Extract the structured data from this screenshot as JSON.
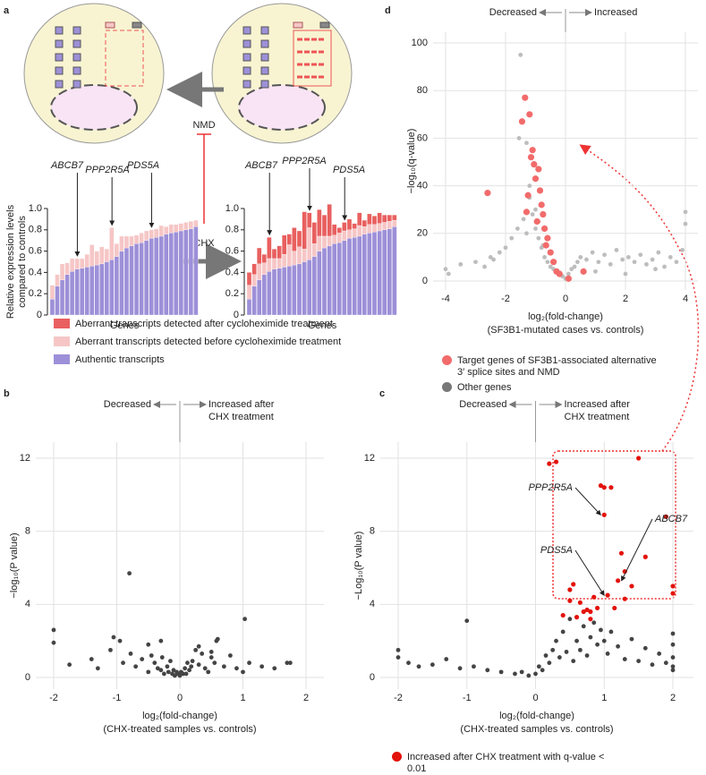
{
  "diagram": {
    "labels": [
      "NMD",
      "CHX"
    ]
  },
  "chart_data": [
    {
      "type": "bar",
      "panel": "a",
      "ylabel": [
        "Relative expression levels",
        "compared to controls"
      ],
      "xlabel": "Genes",
      "annotations": [
        "ABCB7",
        "PPP2R5A",
        "PDS5A"
      ],
      "categories": [
        null,
        null,
        null,
        null,
        null,
        null,
        null,
        null,
        null,
        null,
        null,
        null,
        null,
        null,
        null,
        null,
        null,
        null,
        null,
        null,
        null,
        null,
        null,
        null,
        null,
        null,
        null,
        null,
        null,
        null
      ],
      "ylim": [
        0,
        1
      ],
      "yticks": [
        0,
        0.2,
        0.4,
        0.6,
        0.8,
        {
          "value": 1,
          "label": "1.0"
        }
      ],
      "series": [
        {
          "color": "#9d90d8",
          "values": [
            0.15,
            0.27,
            0.33,
            0.38,
            0.41,
            0.43,
            0.44,
            0.45,
            0.46,
            0.47,
            0.48,
            0.5,
            0.52,
            0.55,
            0.6,
            0.63,
            0.65,
            0.67,
            0.68,
            0.7,
            0.72,
            0.73,
            0.74,
            0.76,
            0.77,
            0.78,
            0.79,
            0.8,
            0.81,
            0.83
          ]
        },
        {
          "color": "#f6c6c6",
          "values": [
            0.13,
            0.11,
            0.15,
            0.11,
            0.12,
            0.1,
            0.09,
            0.12,
            0.2,
            0.13,
            0.16,
            0.12,
            0.3,
            0.12,
            0.14,
            0.11,
            0.09,
            0.08,
            0.09,
            0.09,
            0.08,
            0.08,
            0.1,
            0.07,
            0.08,
            0.07,
            0.07,
            0.07,
            0.07,
            0.06
          ]
        }
      ]
    },
    {
      "type": "bar",
      "xlabel": "Genes",
      "annotations": [
        "ABCB7",
        "PPP2R5A",
        "PDS5A"
      ],
      "categories": [
        null,
        null,
        null,
        null,
        null,
        null,
        null,
        null,
        null,
        null,
        null,
        null,
        null,
        null,
        null,
        null,
        null,
        null,
        null,
        null,
        null,
        null,
        null,
        null,
        null,
        null,
        null,
        null,
        null,
        null
      ],
      "ylim": [
        0,
        1
      ],
      "yticks": [
        0,
        0.2,
        0.4,
        0.6,
        0.8,
        {
          "value": 1,
          "label": "1.0"
        }
      ],
      "series": [
        {
          "name": "Authentic transcripts",
          "color": "#9d90d8",
          "values": [
            0.15,
            0.27,
            0.33,
            0.38,
            0.41,
            0.43,
            0.44,
            0.45,
            0.46,
            0.47,
            0.48,
            0.5,
            0.52,
            0.55,
            0.6,
            0.63,
            0.65,
            0.67,
            0.68,
            0.7,
            0.72,
            0.73,
            0.74,
            0.76,
            0.77,
            0.78,
            0.79,
            0.8,
            0.81,
            0.83
          ]
        },
        {
          "name": "Aberrant transcripts detected before cycloheximide treatment",
          "color": "#f6c6c6",
          "values": [
            0.13,
            0.11,
            0.15,
            0.11,
            0.12,
            0.1,
            0.09,
            0.12,
            0.2,
            0.13,
            0.16,
            0.12,
            0.3,
            0.12,
            0.14,
            0.11,
            0.09,
            0.08,
            0.09,
            0.09,
            0.08,
            0.08,
            0.1,
            0.07,
            0.08,
            0.07,
            0.07,
            0.07,
            0.07,
            0.06
          ]
        },
        {
          "name": "Aberrant transcripts detected after cycloheximide treatment",
          "color": "#e8605f",
          "values": [
            0.12,
            0.1,
            0.15,
            0.08,
            0.2,
            0.09,
            0.12,
            0.18,
            0.1,
            0.22,
            0.15,
            0.35,
            0.14,
            0.2,
            0.25,
            0.2,
            0.3,
            0.1,
            0.05,
            0.08,
            0.1,
            0.05,
            0.12,
            0.06,
            0.1,
            0.08,
            0.1,
            0.07,
            0.06,
            0.05
          ]
        }
      ]
    },
    {
      "type": "scatter",
      "panel": "b",
      "left_label": "Decreased",
      "right_label": [
        "Increased after",
        "CHX treatment"
      ],
      "xlabel": [
        "log₂(fold-change)",
        "(CHX-treated samples vs. controls)"
      ],
      "ylabel": "−log₁₀(P value)",
      "xlim": [
        -2,
        2
      ],
      "xticks": [
        -2,
        -1,
        0,
        1,
        2
      ],
      "ylim": [
        0,
        12
      ],
      "yticks": [
        0,
        4,
        8,
        12
      ],
      "grid": true,
      "series": [
        {
          "color": "#444444",
          "x": [
            -2,
            -2,
            -1.75,
            -1.4,
            -1.3,
            -1.1,
            -1.05,
            -0.95,
            -0.9,
            -0.8,
            -0.7,
            -0.6,
            -0.5,
            -0.45,
            -0.4,
            -0.35,
            -0.3,
            -0.28,
            -0.25,
            -0.2,
            -0.18,
            -0.15,
            -0.12,
            -0.1,
            -0.08,
            -0.05,
            -0.03,
            0,
            0.02,
            0.05,
            0.08,
            0.1,
            0.12,
            0.15,
            0.18,
            0.2,
            0.25,
            0.3,
            0.35,
            0.4,
            0.45,
            0.5,
            0.55,
            0.6,
            0.7,
            0.8,
            0.9,
            1.0,
            1.03,
            1.1,
            1.3,
            1.5,
            1.7,
            1.75,
            -0.78,
            -0.5,
            -0.3,
            0.3,
            0.5,
            0.58
          ],
          "values": [
            2.6,
            1.9,
            0.7,
            1.0,
            0.5,
            1.5,
            2.2,
            2.0,
            0.8,
            5.7,
            0.6,
            1.0,
            0.3,
            1.2,
            0.8,
            0.5,
            0.4,
            1.1,
            0.2,
            0.6,
            0.3,
            0.9,
            0.2,
            0.4,
            0.1,
            0.3,
            0.2,
            0.1,
            0.3,
            0.2,
            0.5,
            0.2,
            0.8,
            0.4,
            0.6,
            0.9,
            1.5,
            0.7,
            1.3,
            0.5,
            0.3,
            1.4,
            0.8,
            2.1,
            0.6,
            1.2,
            0.5,
            0.3,
            3.2,
            0.8,
            0.6,
            0.5,
            0.8,
            0.8,
            1.3,
            1.8,
            2.0,
            1.7,
            1.1,
            2.0
          ]
        }
      ]
    },
    {
      "type": "scatter",
      "panel": "c",
      "left_label": "Decreased",
      "right_label": [
        "Increased after",
        "CHX treatment"
      ],
      "xlabel": [
        "log₂(fold-change)",
        "(CHX-treated samples vs. controls)"
      ],
      "ylabel": "−Log₁₀(P value)",
      "annotations": [
        "PPP2R5A",
        "PDS5A",
        "ABCB7"
      ],
      "xlim": [
        -2,
        2
      ],
      "xticks": [
        -2,
        -1,
        0,
        1,
        2
      ],
      "ylim": [
        0,
        12
      ],
      "yticks": [
        0,
        4,
        8,
        12
      ],
      "grid": true,
      "series": [
        {
          "color": "#444444",
          "x": [
            -2,
            -2,
            -1.85,
            -1.7,
            -1.5,
            -1.3,
            -1.1,
            -1.0,
            -0.9,
            -0.7,
            -0.5,
            -0.3,
            -0.2,
            -0.1,
            0,
            0.05,
            0.1,
            0.15,
            0.2,
            0.25,
            0.3,
            0.35,
            0.4,
            0.45,
            0.5,
            0.55,
            0.6,
            0.65,
            0.7,
            0.75,
            0.8,
            0.85,
            0.9,
            0.95,
            1.0,
            1.05,
            1.1,
            1.2,
            1.3,
            1.4,
            1.5,
            1.6,
            1.7,
            1.8,
            1.9,
            2,
            2,
            2,
            2,
            2
          ],
          "values": [
            1.5,
            1.1,
            0.8,
            0.6,
            0.7,
            1.0,
            0.5,
            3.1,
            0.6,
            0.4,
            0.3,
            0.2,
            0.3,
            0.1,
            0.2,
            0.6,
            0.4,
            1.2,
            0.8,
            1.5,
            2.0,
            1.1,
            2.5,
            1.4,
            3.2,
            0.9,
            2.0,
            1.5,
            2.8,
            1.2,
            2.2,
            3.0,
            1.8,
            2.6,
            2.0,
            1.3,
            2.5,
            1.7,
            1.0,
            2.1,
            0.9,
            1.6,
            0.7,
            1.3,
            0.8,
            2.4,
            1.8,
            1.1,
            0.6,
            0.4
          ]
        },
        {
          "name": "Increased after CHX treatment with q-value < 0.01",
          "color": "#e3120b",
          "x": [
            0.2,
            0.3,
            0.5,
            0.6,
            0.7,
            0.9,
            0.95,
            1.0,
            1.05,
            1.1,
            0.4,
            0.5,
            0.55,
            0.65,
            0.75,
            0.8,
            0.85,
            1.15,
            1.2,
            1.25,
            1.3,
            1.4,
            1.5,
            1.6,
            1.9,
            2,
            2,
            1.0,
            0.8,
            1.3
          ],
          "values": [
            11.7,
            11.8,
            4.2,
            3.3,
            3.6,
            3.8,
            10.5,
            10.4,
            4.5,
            10.4,
            3.4,
            4.8,
            5.1,
            4.1,
            3.7,
            3.6,
            4.4,
            3.8,
            5.3,
            6.8,
            4.3,
            5.0,
            12.0,
            6.6,
            8.8,
            5.0,
            4.6,
            8.9,
            3.2,
            5.8
          ]
        }
      ]
    },
    {
      "type": "scatter",
      "panel": "d",
      "left_label": "Decreased",
      "right_label": [
        "Increased"
      ],
      "xlabel": [
        "log₂(fold-change)",
        "(SF3B1-mutated cases vs. controls)"
      ],
      "ylabel": "−log₁₀(q-value)",
      "xlim": [
        -4,
        4
      ],
      "xticks": [
        -4,
        -2,
        0,
        2,
        4
      ],
      "ylim": [
        0,
        100
      ],
      "yticks": [
        0,
        20,
        40,
        60,
        80,
        100
      ],
      "grid": true,
      "series": [
        {
          "name": "Other genes",
          "color": "#bdbdbd",
          "x": [
            -4,
            -3.9,
            -3.5,
            -3,
            -2.7,
            -2.4,
            -2.2,
            -2,
            -1.8,
            -1.6,
            -1.5,
            -1.4,
            -1.3,
            -1.2,
            -1.1,
            -1,
            -0.9,
            -0.8,
            -0.7,
            -0.6,
            -0.5,
            -0.4,
            -0.3,
            -0.2,
            -0.1,
            0,
            0.1,
            0.2,
            0.3,
            0.4,
            0.5,
            0.7,
            0.9,
            1.1,
            1.3,
            1.5,
            1.7,
            1.9,
            2.1,
            2.3,
            2.5,
            2.7,
            2.9,
            3.1,
            3.3,
            3.5,
            3.7,
            3.9,
            4,
            4,
            -1.55,
            -1.2,
            -1.0,
            -0.9,
            -0.75,
            -1.3,
            1.0,
            2.0,
            3.0,
            -2.5
          ],
          "values": [
            5,
            3,
            7,
            8,
            6,
            9,
            12,
            14,
            18,
            22,
            95,
            26,
            20,
            35,
            28,
            22,
            18,
            14,
            10,
            8,
            6,
            5,
            4,
            3,
            2,
            1,
            3,
            5,
            6,
            8,
            10,
            9,
            12,
            8,
            11,
            7,
            13,
            9,
            10,
            8,
            11,
            7,
            9,
            12,
            6,
            10,
            8,
            13,
            29,
            24,
            60,
            40,
            30,
            25,
            15,
            58,
            4,
            3,
            5,
            10
          ]
        },
        {
          "name": "Target genes of SF3B1-associated alternative 3′ splice sites and NMD",
          "color": "#f26b6b",
          "x": [
            -2.6,
            -1.45,
            -1.35,
            -1.2,
            -1.15,
            -1.1,
            -1.05,
            -1.0,
            -0.9,
            -0.85,
            -0.8,
            -0.75,
            -0.7,
            -0.6,
            -0.5,
            -0.4,
            -0.3,
            -0.2,
            0.1,
            0.6,
            -1.3,
            -1.25,
            -0.95,
            -0.65
          ],
          "values": [
            37,
            67,
            77,
            70,
            52,
            55,
            49,
            43,
            47,
            38,
            32,
            28,
            22,
            18,
            12,
            8,
            4,
            3,
            1,
            4,
            29,
            36,
            25,
            15
          ]
        }
      ]
    }
  ]
}
